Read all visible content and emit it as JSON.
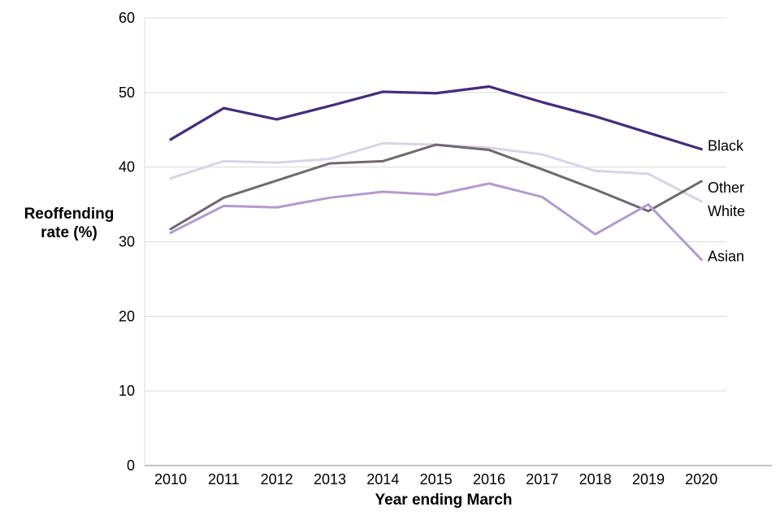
{
  "chart_data": {
    "type": "line",
    "title": "",
    "xlabel": "Year ending March",
    "ylabel": "Reoffending rate (%)",
    "x": [
      2010,
      2011,
      2012,
      2013,
      2014,
      2015,
      2016,
      2017,
      2018,
      2019,
      2020
    ],
    "ylim": [
      0,
      60
    ],
    "yticks": [
      0,
      10,
      20,
      30,
      40,
      50,
      60
    ],
    "grid": "horizontal",
    "legend_position": "right-of-line-ends",
    "series": [
      {
        "name": "Black",
        "color": "#472A7E",
        "values": [
          43.7,
          47.9,
          46.4,
          48.2,
          50.1,
          49.9,
          50.8,
          48.7,
          46.8,
          44.6,
          42.4
        ]
      },
      {
        "name": "Other",
        "color": "#6E696E",
        "values": [
          31.7,
          35.9,
          38.2,
          40.5,
          40.8,
          43.0,
          42.3,
          39.7,
          37.0,
          34.1,
          38.1
        ]
      },
      {
        "name": "White",
        "color": "#D9D3E8",
        "values": [
          38.5,
          40.8,
          40.6,
          41.1,
          43.2,
          43.0,
          42.6,
          41.7,
          39.5,
          39.1,
          35.4
        ]
      },
      {
        "name": "Asian",
        "color": "#B49ACD",
        "values": [
          31.2,
          34.8,
          34.6,
          35.9,
          36.7,
          36.3,
          37.8,
          36.0,
          31.0,
          35.0,
          27.6
        ]
      }
    ]
  },
  "colors": {
    "gridline": "#D9D9D9",
    "axis_line": "#A0A0A0",
    "plot_border": "#D9D9D9",
    "text": "#000000",
    "background": "#FFFFFF"
  }
}
